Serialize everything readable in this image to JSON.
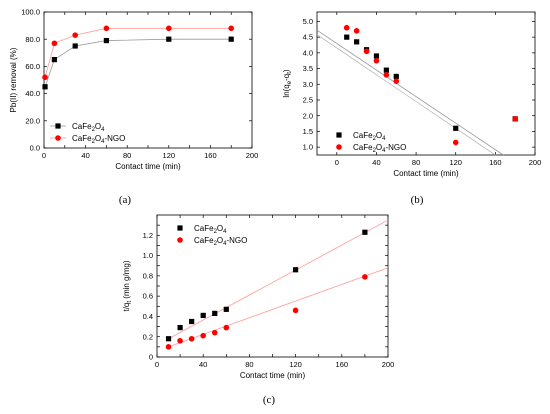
{
  "chart_data": [
    {
      "type": "scatter",
      "panel_label": "(a)",
      "xlabel": "Contact time (min)",
      "ylabel": "Pb(II) removal (%)",
      "xlim": [
        0,
        200
      ],
      "ylim": [
        0,
        100
      ],
      "xticks": [
        0,
        20,
        40,
        60,
        80,
        100,
        120,
        140,
        160,
        180,
        200
      ],
      "xtick_labels": [
        "0",
        "",
        "40",
        "",
        "80",
        "",
        "120",
        "",
        "160",
        "",
        "200"
      ],
      "yticks": [
        0,
        20,
        40,
        60,
        80,
        100
      ],
      "ytick_labels": [
        "0.0",
        "20.0",
        "40.0",
        "60.0",
        "80.0",
        "100.0"
      ],
      "legend_position": "center-right",
      "fit": "curve",
      "series": [
        {
          "name": "CaFe2O4",
          "label_main": "CaFe",
          "label_sub1": "2",
          "label_mid": "O",
          "label_sub2": "4",
          "label_tail": "",
          "marker": "square",
          "color": "#000000",
          "fit_color": "#999999",
          "x": [
            1,
            10,
            30,
            60,
            120,
            180
          ],
          "y": [
            45,
            65,
            75,
            79,
            80,
            80
          ]
        },
        {
          "name": "CaFe2O4-NGO",
          "label_main": "CaFe",
          "label_sub1": "2",
          "label_mid": "O",
          "label_sub2": "4",
          "label_tail": "-NGO",
          "marker": "circle",
          "color": "#ff0000",
          "fit_color": "#ff9a9a",
          "x": [
            1,
            10,
            30,
            60,
            120,
            180
          ],
          "y": [
            52,
            77,
            83,
            88,
            88,
            88
          ]
        }
      ]
    },
    {
      "type": "scatter",
      "panel_label": "(b)",
      "xlabel": "Contact time (min)",
      "ylabel": "ln(qe-qt)",
      "xlim": [
        -20,
        200
      ],
      "ylim": [
        0.75,
        5.3
      ],
      "xticks": [
        0,
        40,
        80,
        120,
        160,
        200
      ],
      "xtick_labels": [
        "0",
        "40",
        "80",
        "120",
        "160",
        "200"
      ],
      "yticks": [
        1.0,
        1.5,
        2.0,
        2.5,
        3.0,
        3.5,
        4.0,
        4.5,
        5.0
      ],
      "ytick_labels": [
        "1.0",
        "1.5",
        "2.0",
        "2.5",
        "3.0",
        "3.5",
        "4.0",
        "4.5",
        "5.0"
      ],
      "legend_position": "bottom-center",
      "fit": "linear",
      "series": [
        {
          "name": "CaFe2O4",
          "label_main": "CaFe",
          "label_sub1": "2",
          "label_mid": "O",
          "label_sub2": "4",
          "label_tail": "",
          "marker": "square",
          "color": "#000000",
          "fit_color": "#999999",
          "x": [
            10,
            20,
            30,
            40,
            50,
            60,
            120,
            180
          ],
          "y": [
            4.5,
            4.35,
            4.1,
            3.9,
            3.45,
            3.25,
            1.6,
            1.9
          ],
          "fit_line": [
            [
              -20,
              4.72
            ],
            [
              168,
              0.75
            ]
          ]
        },
        {
          "name": "CaFe2O4-NGO",
          "label_main": "CaFe",
          "label_sub1": "2",
          "label_mid": "O",
          "label_sub2": "4",
          "label_tail": "-NGO",
          "marker": "circle",
          "color": "#ff0000",
          "fit_color": "#bbbbbb",
          "x": [
            10,
            20,
            30,
            40,
            50,
            60,
            120,
            180
          ],
          "y": [
            4.8,
            4.7,
            4.05,
            3.75,
            3.3,
            3.1,
            1.15,
            1.9
          ],
          "fit_line": [
            [
              -20,
              4.58
            ],
            [
              160,
              0.75
            ]
          ]
        }
      ]
    },
    {
      "type": "scatter",
      "panel_label": "(c)",
      "xlabel": "Contact time (min)",
      "ylabel": "t/qt (min g/mg)",
      "xlim": [
        0,
        200
      ],
      "ylim": [
        0,
        1.4
      ],
      "xticks": [
        0,
        20,
        40,
        60,
        80,
        100,
        120,
        140,
        160,
        180,
        200
      ],
      "xtick_labels": [
        "0",
        "",
        "40",
        "",
        "80",
        "",
        "120",
        "",
        "160",
        "",
        "200"
      ],
      "yticks": [
        0,
        0.1,
        0.2,
        0.3,
        0.4,
        0.5,
        0.6,
        0.7,
        0.8,
        0.9,
        1.0,
        1.1,
        1.2,
        1.3
      ],
      "ytick_labels": [
        "0",
        "",
        "0.2",
        "",
        "0.4",
        "",
        "0.6",
        "",
        "0.8",
        "",
        "1.0",
        "",
        "1.2",
        ""
      ],
      "legend_position": "top-left",
      "fit": "linear",
      "series": [
        {
          "name": "CaFe2O4",
          "label_main": "CaFe",
          "label_sub1": "2",
          "label_mid": "O",
          "label_sub2": "4",
          "label_tail": "",
          "marker": "square",
          "color": "#000000",
          "fit_color": "#ff9a9a",
          "x": [
            10,
            20,
            30,
            40,
            50,
            60,
            120,
            180
          ],
          "y": [
            0.18,
            0.29,
            0.35,
            0.41,
            0.43,
            0.47,
            0.86,
            1.23
          ],
          "fit_line": [
            [
              10,
              0.18
            ],
            [
              200,
              1.35
            ]
          ]
        },
        {
          "name": "CaFe2O4-NGO",
          "label_main": "CaFe",
          "label_sub1": "2",
          "label_mid": "O",
          "label_sub2": "4",
          "label_tail": "-NGO",
          "marker": "circle",
          "color": "#ff0000",
          "fit_color": "#ff9a9a",
          "x": [
            10,
            20,
            30,
            40,
            50,
            60,
            120,
            180
          ],
          "y": [
            0.1,
            0.16,
            0.18,
            0.21,
            0.24,
            0.29,
            0.46,
            0.79
          ],
          "fit_line": [
            [
              10,
              0.1
            ],
            [
              200,
              0.88
            ]
          ]
        }
      ]
    }
  ]
}
